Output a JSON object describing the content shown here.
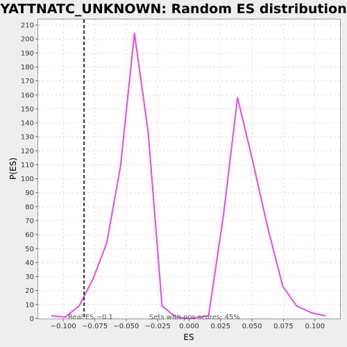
{
  "chart_data": {
    "type": "line",
    "title": "YATTNATC_UNKNOWN: Random ES distribution",
    "xlabel": "ES",
    "ylabel": "P(ES)",
    "xlim": [
      -0.12,
      0.12
    ],
    "ylim": [
      0,
      214
    ],
    "x_ticks": [
      -0.1,
      -0.075,
      -0.05,
      -0.025,
      0.0,
      0.025,
      0.05,
      0.075,
      0.1
    ],
    "x_tick_labels": [
      "−0.100",
      "−0.075",
      "−0.050",
      "−0.025",
      "0.000",
      "0.025",
      "0.050",
      "0.075",
      "0.100"
    ],
    "y_ticks": [
      0,
      10,
      20,
      30,
      40,
      50,
      60,
      70,
      80,
      90,
      100,
      110,
      120,
      130,
      140,
      150,
      160,
      170,
      180,
      190,
      200,
      210
    ],
    "y_tick_labels": [
      "0",
      "10",
      "20",
      "30",
      "40",
      "50",
      "60",
      "70",
      "80",
      "90",
      "100",
      "110",
      "120",
      "130",
      "140",
      "150",
      "160",
      "170",
      "180",
      "190",
      "200",
      "210"
    ],
    "grid": true,
    "series": [
      {
        "color": "#ee44ee",
        "x": [
          -0.1095,
          -0.0985,
          -0.0875,
          -0.0765,
          -0.0655,
          -0.0545,
          -0.0435,
          -0.0325,
          -0.0215,
          -0.0105,
          0.0005,
          0.0155,
          0.0275,
          0.0385,
          0.0505,
          0.0625,
          0.0745,
          0.0855,
          0.0975,
          0.1085
        ],
        "y": [
          2,
          1,
          9,
          28,
          54,
          109,
          204,
          133,
          9,
          1,
          0,
          2,
          75,
          158,
          113,
          65,
          23,
          9,
          4,
          2
        ]
      }
    ],
    "reference_line": {
      "x": -0.0835,
      "style": "dashed",
      "color": "#333333"
    },
    "annotations": {
      "real_es": "Real ES −0.1",
      "pos_scores": "Sets with pos scores: 45%"
    }
  }
}
